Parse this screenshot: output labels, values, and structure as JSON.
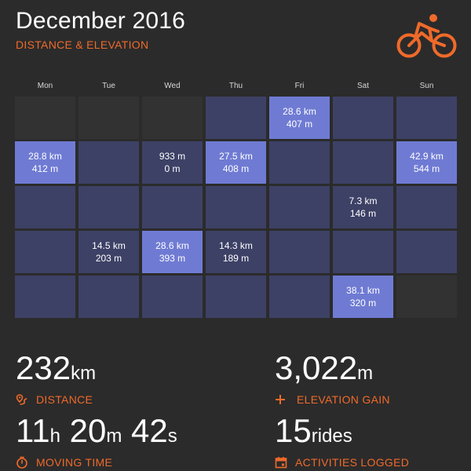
{
  "header": {
    "title": "December 2016",
    "subtitle": "DISTANCE & ELEVATION"
  },
  "icons": {
    "logo": "cyclist-icon",
    "distance": "route-icon",
    "elevation": "plus-icon",
    "time": "stopwatch-icon",
    "activities": "calendar-icon"
  },
  "colors": {
    "accent": "#ef6a2a",
    "background": "#2b2b2b",
    "cell_empty": "#323232",
    "cell_default": "#3d4166",
    "cell_active": "#6f7bd3"
  },
  "calendar": {
    "weekdays": [
      "Mon",
      "Tue",
      "Wed",
      "Thu",
      "Fri",
      "Sat",
      "Sun"
    ],
    "weeks": [
      [
        {
          "state": "empty"
        },
        {
          "state": "empty"
        },
        {
          "state": "empty"
        },
        {
          "state": "day"
        },
        {
          "state": "active",
          "distance": "28.6 km",
          "elevation": "407 m"
        },
        {
          "state": "day"
        },
        {
          "state": "day"
        }
      ],
      [
        {
          "state": "active",
          "distance": "28.8 km",
          "elevation": "412 m"
        },
        {
          "state": "day"
        },
        {
          "state": "day",
          "distance": "933 m",
          "elevation": "0 m"
        },
        {
          "state": "active",
          "distance": "27.5 km",
          "elevation": "408 m"
        },
        {
          "state": "day"
        },
        {
          "state": "day"
        },
        {
          "state": "active",
          "distance": "42.9 km",
          "elevation": "544 m"
        }
      ],
      [
        {
          "state": "day"
        },
        {
          "state": "day"
        },
        {
          "state": "day"
        },
        {
          "state": "day"
        },
        {
          "state": "day"
        },
        {
          "state": "day",
          "distance": "7.3 km",
          "elevation": "146 m"
        },
        {
          "state": "day"
        }
      ],
      [
        {
          "state": "day"
        },
        {
          "state": "day",
          "distance": "14.5 km",
          "elevation": "203 m"
        },
        {
          "state": "active",
          "distance": "28.6 km",
          "elevation": "393 m"
        },
        {
          "state": "day",
          "distance": "14.3 km",
          "elevation": "189 m"
        },
        {
          "state": "day"
        },
        {
          "state": "day"
        },
        {
          "state": "day"
        }
      ],
      [
        {
          "state": "day"
        },
        {
          "state": "day"
        },
        {
          "state": "day"
        },
        {
          "state": "day"
        },
        {
          "state": "day"
        },
        {
          "state": "active",
          "distance": "38.1 km",
          "elevation": "320 m"
        },
        {
          "state": "empty"
        }
      ]
    ]
  },
  "stats": {
    "distance": {
      "value": "232",
      "unit": "km",
      "label": "DISTANCE"
    },
    "elevation": {
      "value": "3,022",
      "unit": "m",
      "label": "ELEVATION GAIN"
    },
    "moving_time": {
      "hours": "11",
      "h_unit": "h",
      "minutes": "20",
      "m_unit": "m",
      "seconds": "42",
      "s_unit": "s",
      "label": "MOVING TIME"
    },
    "activities": {
      "value": "15",
      "unit": "rides",
      "label": "ACTIVITIES LOGGED"
    }
  }
}
